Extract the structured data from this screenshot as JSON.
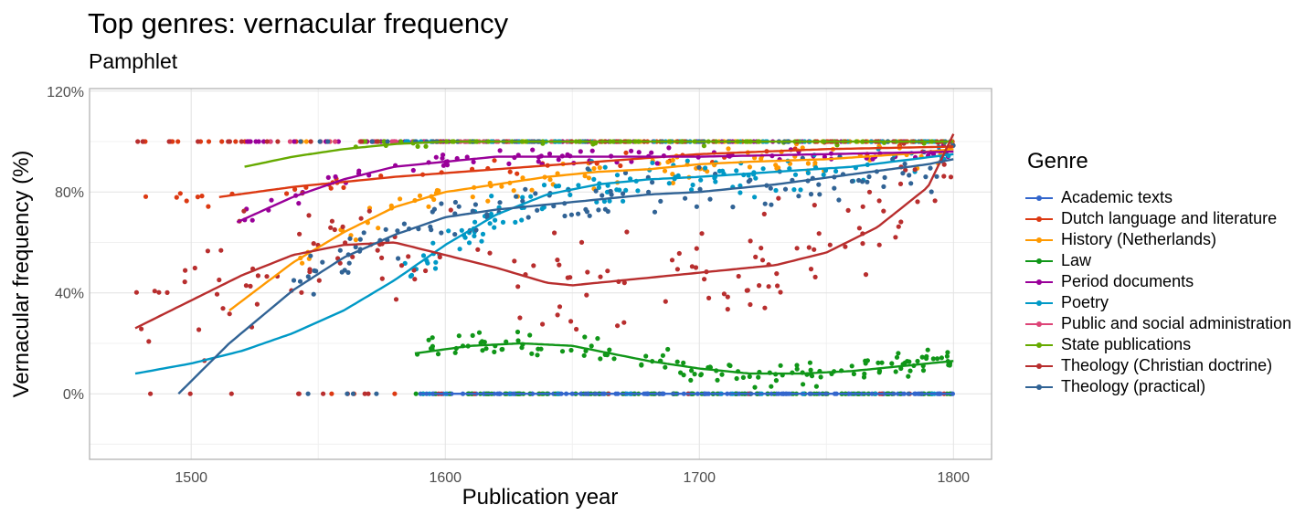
{
  "chart_data": {
    "type": "scatter",
    "title": "Top genres: vernacular frequency",
    "subtitle": "Pamphlet",
    "xlabel": "Publication year",
    "ylabel": "Vernacular frequency (%)",
    "xlim": [
      1460,
      1815
    ],
    "ylim": [
      -26,
      121
    ],
    "x_ticks": [
      1500,
      1600,
      1700,
      1800
    ],
    "x_tick_labels": [
      "1500",
      "1600",
      "1700",
      "1800"
    ],
    "y_ticks": [
      0,
      40,
      80,
      120
    ],
    "y_tick_labels": [
      "0%",
      "40%",
      "80%",
      "120%"
    ],
    "y_minor_ticks": [
      -20,
      20,
      60,
      100
    ],
    "x_minor_ticks": [
      1550,
      1650,
      1750
    ],
    "grid": true,
    "legend_title": "Genre",
    "legend_position": "right",
    "series": [
      {
        "name": "Academic texts",
        "color": "#3366CC",
        "curve": [
          [
            1590,
            0
          ],
          [
            1700,
            0
          ],
          [
            1800,
            0
          ]
        ],
        "range": [
          1590,
          1800
        ],
        "spread": 0,
        "bands": [
          [
            0,
            1.0
          ]
        ],
        "n": 170
      },
      {
        "name": "Dutch language and literature",
        "color": "#DC3912",
        "curve": [
          [
            1511,
            78
          ],
          [
            1540,
            82
          ],
          [
            1580,
            86
          ],
          [
            1620,
            89
          ],
          [
            1660,
            92
          ],
          [
            1700,
            95
          ],
          [
            1750,
            97
          ],
          [
            1800,
            98
          ]
        ],
        "range": [
          1478,
          1800
        ],
        "spread": 4,
        "bands": [
          [
            100,
            0.55
          ],
          [
            0,
            0.05
          ]
        ],
        "n": 110
      },
      {
        "name": "History (Netherlands)",
        "color": "#FF9900",
        "curve": [
          [
            1515,
            33
          ],
          [
            1540,
            52
          ],
          [
            1560,
            64
          ],
          [
            1580,
            74
          ],
          [
            1600,
            80
          ],
          [
            1620,
            83
          ],
          [
            1640,
            86
          ],
          [
            1660,
            88
          ],
          [
            1680,
            89
          ],
          [
            1700,
            91
          ],
          [
            1720,
            92
          ],
          [
            1750,
            93
          ],
          [
            1780,
            95
          ],
          [
            1800,
            97
          ]
        ],
        "range": [
          1540,
          1800
        ],
        "spread": 8,
        "bands": [
          [
            100,
            0.3
          ]
        ],
        "n": 140
      },
      {
        "name": "Law",
        "color": "#109618",
        "curve": [
          [
            1588,
            16
          ],
          [
            1610,
            19
          ],
          [
            1630,
            20
          ],
          [
            1650,
            19
          ],
          [
            1665,
            16
          ],
          [
            1680,
            13
          ],
          [
            1700,
            10
          ],
          [
            1720,
            8
          ],
          [
            1740,
            8
          ],
          [
            1760,
            9
          ],
          [
            1780,
            11
          ],
          [
            1800,
            13
          ]
        ],
        "range": [
          1588,
          1800
        ],
        "spread": 6,
        "bands": [
          [
            0,
            0.35
          ]
        ],
        "n": 230
      },
      {
        "name": "Period documents",
        "color": "#990099",
        "curve": [
          [
            1518,
            68
          ],
          [
            1540,
            78
          ],
          [
            1560,
            85
          ],
          [
            1580,
            90
          ],
          [
            1600,
            92
          ],
          [
            1620,
            94
          ],
          [
            1650,
            94
          ],
          [
            1700,
            94
          ],
          [
            1750,
            95
          ],
          [
            1800,
            96
          ]
        ],
        "range": [
          1520,
          1800
        ],
        "spread": 4,
        "bands": [
          [
            100,
            0.5
          ]
        ],
        "n": 160
      },
      {
        "name": "Poetry",
        "color": "#0099C6",
        "curve": [
          [
            1478,
            8
          ],
          [
            1500,
            12
          ],
          [
            1520,
            17
          ],
          [
            1540,
            24
          ],
          [
            1560,
            33
          ],
          [
            1580,
            45
          ],
          [
            1600,
            59
          ],
          [
            1620,
            71
          ],
          [
            1640,
            79
          ],
          [
            1660,
            83
          ],
          [
            1680,
            85
          ],
          [
            1700,
            86
          ],
          [
            1730,
            88
          ],
          [
            1760,
            90
          ],
          [
            1800,
            95
          ]
        ],
        "range": [
          1580,
          1800
        ],
        "spread": 10,
        "bands": [
          [
            0,
            0.08
          ],
          [
            100,
            0.35
          ]
        ],
        "n": 210
      },
      {
        "name": "Public and social administration",
        "color": "#DD4477",
        "curve": [
          [
            1800,
            100
          ]
        ],
        "range": [
          1522,
          1660
        ],
        "spread": 0,
        "bands": [
          [
            100,
            1.0
          ]
        ],
        "n": 30
      },
      {
        "name": "State publications",
        "color": "#66AA00",
        "curve": [
          [
            1521,
            90
          ],
          [
            1540,
            94
          ],
          [
            1560,
            97
          ],
          [
            1580,
            99
          ],
          [
            1600,
            100
          ],
          [
            1700,
            100
          ],
          [
            1800,
            100
          ]
        ],
        "range": [
          1560,
          1800
        ],
        "spread": 2,
        "bands": [
          [
            100,
            0.7
          ]
        ],
        "n": 90
      },
      {
        "name": "Theology (Christian doctrine)",
        "color": "#B82E2E",
        "curve": [
          [
            1478,
            26
          ],
          [
            1500,
            37
          ],
          [
            1520,
            47
          ],
          [
            1540,
            55
          ],
          [
            1560,
            59
          ],
          [
            1580,
            60
          ],
          [
            1600,
            55
          ],
          [
            1620,
            50
          ],
          [
            1640,
            44
          ],
          [
            1650,
            43
          ],
          [
            1670,
            45
          ],
          [
            1690,
            47
          ],
          [
            1710,
            49
          ],
          [
            1730,
            51
          ],
          [
            1750,
            56
          ],
          [
            1770,
            66
          ],
          [
            1790,
            82
          ],
          [
            1800,
            103
          ]
        ],
        "range": [
          1478,
          1800
        ],
        "spread": 28,
        "bands": [
          [
            0,
            0.08
          ],
          [
            100,
            0.2
          ]
        ],
        "n": 220
      },
      {
        "name": "Theology (practical)",
        "color": "#316395",
        "curve": [
          [
            1495,
            0
          ],
          [
            1515,
            20
          ],
          [
            1540,
            41
          ],
          [
            1560,
            54
          ],
          [
            1580,
            63
          ],
          [
            1600,
            70
          ],
          [
            1620,
            73
          ],
          [
            1650,
            76
          ],
          [
            1680,
            79
          ],
          [
            1700,
            80
          ],
          [
            1730,
            83
          ],
          [
            1760,
            87
          ],
          [
            1790,
            91
          ],
          [
            1800,
            93
          ]
        ],
        "range": [
          1540,
          1800
        ],
        "spread": 14,
        "bands": [
          [
            0,
            0.1
          ],
          [
            100,
            0.2
          ]
        ],
        "n": 170
      }
    ]
  }
}
